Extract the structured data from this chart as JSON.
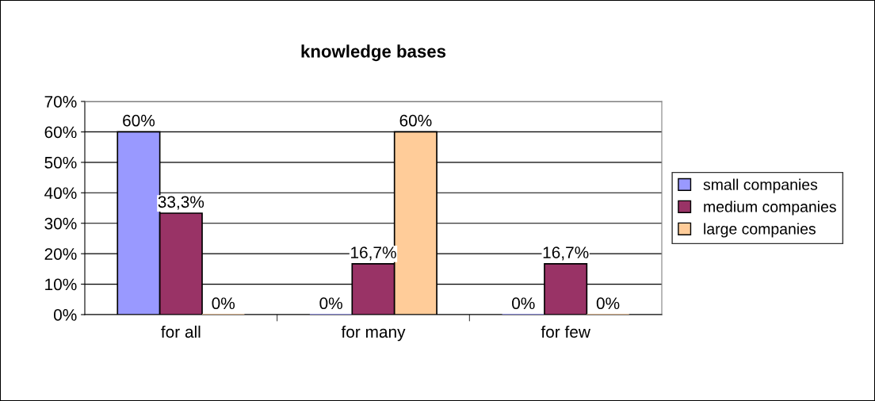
{
  "chart_data": {
    "type": "bar",
    "title": "knowledge bases",
    "categories": [
      "for all",
      "for many",
      "for few"
    ],
    "series": [
      {
        "name": "small companies",
        "color": "#9999ff",
        "values": [
          60,
          0,
          0
        ],
        "value_labels": [
          "60%",
          "0%",
          "0%"
        ]
      },
      {
        "name": "medium companies",
        "color": "#993366",
        "values": [
          33.3,
          16.7,
          16.7
        ],
        "value_labels": [
          "33,3%",
          "16,7%",
          "16,7%"
        ]
      },
      {
        "name": "large companies",
        "color": "#ffcc99",
        "values": [
          0,
          60,
          0
        ],
        "value_labels": [
          "0%",
          "60%",
          "0%"
        ]
      }
    ],
    "ylim": [
      0,
      70
    ],
    "yticks": [
      {
        "value": 0,
        "label": "0%"
      },
      {
        "value": 10,
        "label": "10%"
      },
      {
        "value": 20,
        "label": "20%"
      },
      {
        "value": 30,
        "label": "30%"
      },
      {
        "value": 40,
        "label": "40%"
      },
      {
        "value": 50,
        "label": "50%"
      },
      {
        "value": 60,
        "label": "60%"
      },
      {
        "value": 70,
        "label": "70%"
      }
    ],
    "grid": "y",
    "legend": "right"
  }
}
